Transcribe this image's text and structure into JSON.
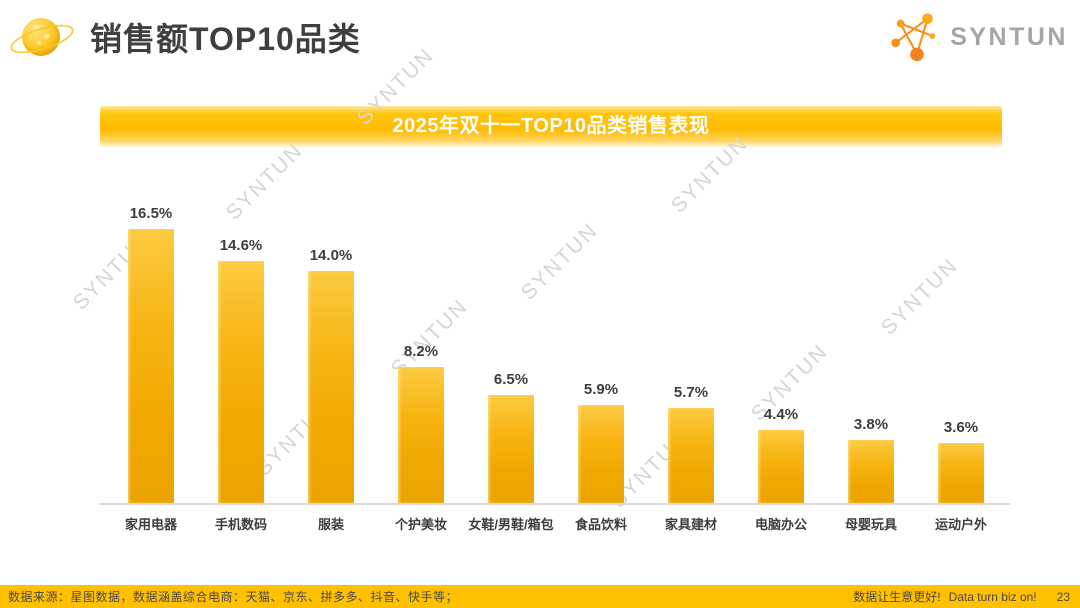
{
  "header": {
    "title": "销售额TOP10品类",
    "logo_text": "SYNTUN"
  },
  "banner": {
    "title": "2025年双十一TOP10品类销售表现"
  },
  "watermark_text": "SYNTUN",
  "chart_data": {
    "type": "bar",
    "title": "2025年双十一TOP10品类销售表现",
    "categories": [
      "家用电器",
      "手机数码",
      "服装",
      "个护美妆",
      "女鞋/男鞋/箱包",
      "食品饮料",
      "家具建材",
      "电脑办公",
      "母婴玩具",
      "运动户外"
    ],
    "values": [
      16.5,
      14.6,
      14.0,
      8.2,
      6.5,
      5.9,
      5.7,
      4.4,
      3.8,
      3.6
    ],
    "value_labels": [
      "16.5%",
      "14.6%",
      "14.0%",
      "8.2%",
      "6.5%",
      "5.9%",
      "5.7%",
      "4.4%",
      "3.8%",
      "3.6%"
    ],
    "unit": "%",
    "xlabel": "",
    "ylabel": "",
    "ylim": [
      0,
      18
    ],
    "grid": false,
    "legend": null,
    "bar_color_top": "#FBC93C",
    "bar_color_bottom": "#EDA400"
  },
  "footer": {
    "source": "数据来源：星图数据，数据涵盖综合电商：天猫、京东、拼多多、抖音、快手等；",
    "slogan_cn": "数据让生意更好!",
    "slogan_en": "Data turn biz on!",
    "page_number": "23"
  },
  "colors": {
    "accent_gold": "#FFC000",
    "title_text": "#3F3F3F",
    "label_text": "#3D3D3D",
    "watermark": "#D5D5D5",
    "axis_line": "#D9D9D9",
    "logo_orange": "#F6921E",
    "logo_gray": "#A6A6A6"
  }
}
